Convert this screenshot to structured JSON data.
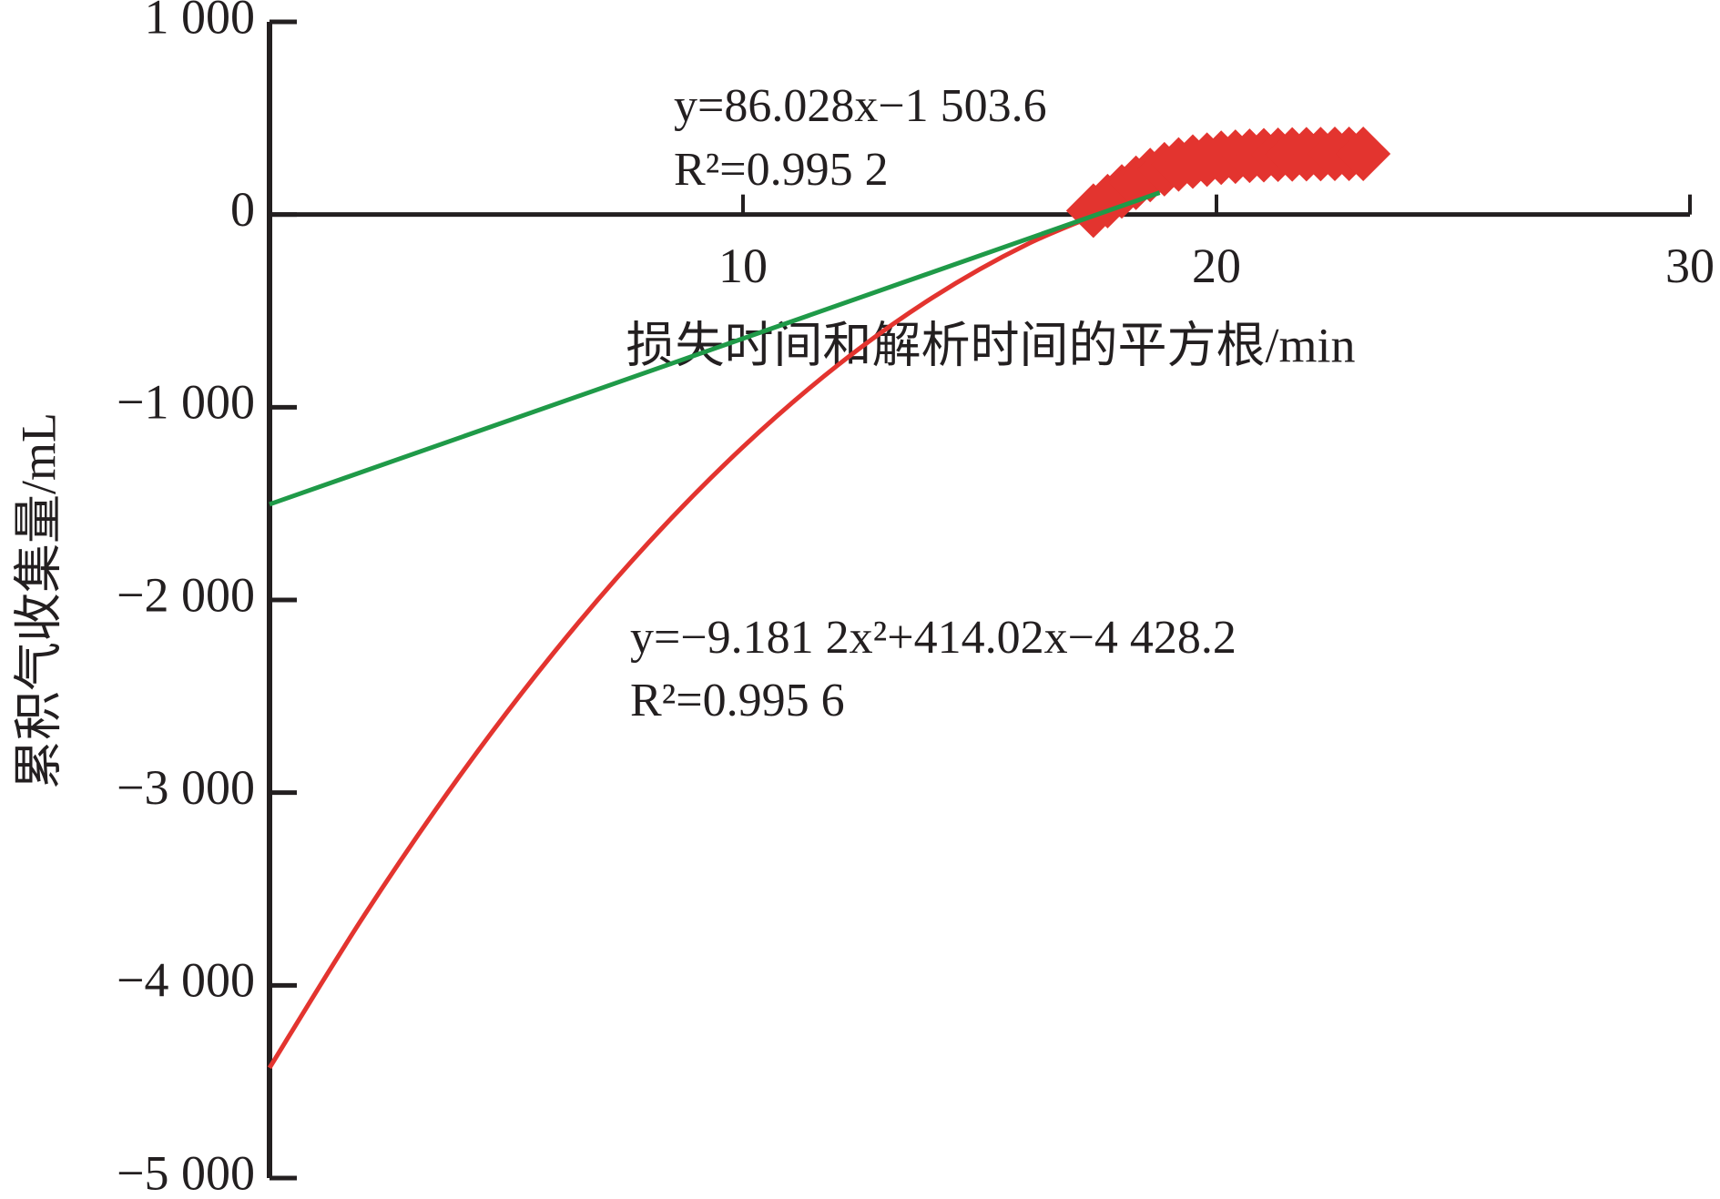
{
  "chart_data": {
    "type": "scatter",
    "x_label": "损失时间和解析时间的平方根/min",
    "y_label": "累积气收集量/mL",
    "xlim": [
      0,
      30
    ],
    "ylim": [
      -5000,
      1000
    ],
    "xticks": [
      10,
      20,
      30
    ],
    "yticks": [
      {
        "value": 1000,
        "label": "1 000"
      },
      0,
      {
        "value": -1000,
        "label": "−1 000"
      },
      {
        "value": -2000,
        "label": "−2 000"
      },
      {
        "value": -3000,
        "label": "−3 000"
      },
      {
        "value": -4000,
        "label": "−4 000"
      },
      {
        "value": -5000,
        "label": "−5 000"
      }
    ],
    "annotations": [
      "y=86.028x−1 503.6",
      "R²=0.995 2",
      "y=−9.181 2x²+414.02x−4 428.2",
      "R²=0.995 6"
    ],
    "series": [
      {
        "type": "scatter",
        "color": "#e3342f",
        "x": [
          17.4,
          17.7,
          18.0,
          18.3,
          18.6,
          18.9,
          19.2,
          19.5,
          19.8,
          20.1,
          20.4,
          20.7,
          21.0,
          21.3,
          21.6,
          21.9,
          22.2,
          22.5,
          22.8,
          23.1
        ],
        "values": [
          20,
          70,
          120,
          165,
          205,
          235,
          260,
          275,
          285,
          295,
          300,
          305,
          308,
          310,
          312,
          313,
          314,
          315,
          315,
          315
        ]
      },
      {
        "type": "line",
        "color": "#e3342f",
        "x": [
          0,
          2,
          4,
          6,
          8,
          10,
          12,
          14,
          16,
          18
        ],
        "values": [
          -4428.2,
          -3636.9,
          -2919.0,
          -2274.6,
          -1703.6,
          -1206.1,
          -782.1,
          -431.4,
          -154.3,
          49.5
        ]
      },
      {
        "type": "line",
        "color": "#1f9a48",
        "x": [
          0,
          18.8
        ],
        "values": [
          -1503.6,
          113.7
        ]
      }
    ]
  }
}
